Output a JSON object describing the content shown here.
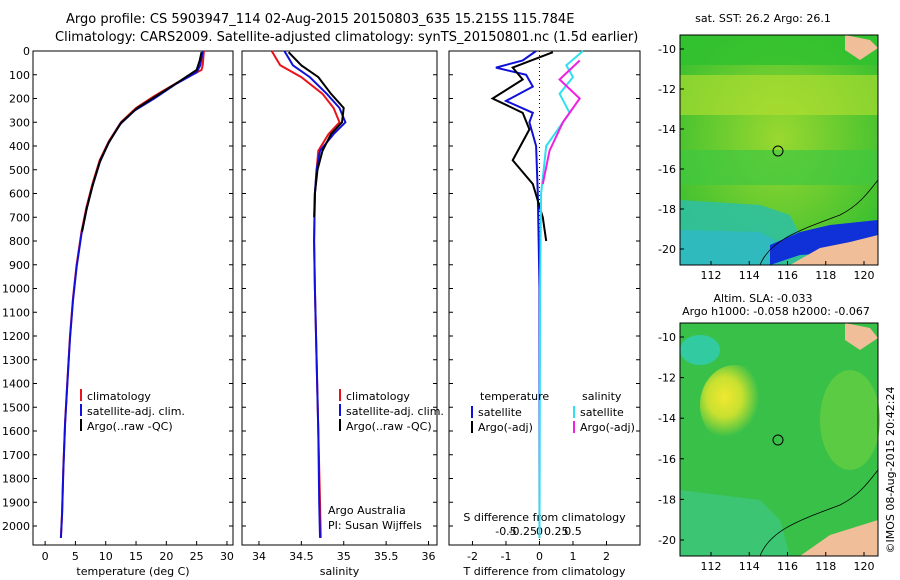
{
  "header": {
    "line1": "Argo profile: CS 5903947_114 02-Aug-2015 20150803_635 15.215S 115.784E",
    "line2": "Climatology: CARS2009. Satellite-adjusted climatology: synTS_20150801.nc (1.5d earlier)"
  },
  "colors": {
    "climatology": "#e8141b",
    "satellite": "#1010d8",
    "argo": "#000000",
    "sat_salinity": "#30e0f0",
    "argo_salinity": "#f020e0",
    "land": "#f0be98"
  },
  "depth_ticks": [
    "0",
    "100",
    "200",
    "300",
    "400",
    "500",
    "600",
    "700",
    "800",
    "900",
    "1000",
    "1100",
    "1200",
    "1300",
    "1400",
    "1500",
    "1600",
    "1700",
    "1800",
    "1900",
    "2000"
  ],
  "chart_data": [
    {
      "type": "line",
      "xlabel": "temperature (deg C)",
      "xlim": [
        -2,
        31
      ],
      "ylim": [
        2080,
        0
      ],
      "xticks": [
        "0",
        "5",
        "10",
        "15",
        "20",
        "25",
        "30"
      ],
      "legend": [
        "climatology",
        "satellite-adj. clim.",
        "Argo(..raw -QC)"
      ],
      "series": [
        {
          "name": "climatology",
          "color": "#e8141b",
          "points": [
            [
              26.2,
              0
            ],
            [
              26.0,
              60
            ],
            [
              25.8,
              80
            ],
            [
              22,
              130
            ],
            [
              18,
              190
            ],
            [
              15,
              240
            ],
            [
              12.5,
              300
            ],
            [
              10.5,
              380
            ],
            [
              9,
              460
            ],
            [
              7.8,
              560
            ],
            [
              6.8,
              660
            ],
            [
              6,
              760
            ],
            [
              5.2,
              900
            ],
            [
              4.6,
              1040
            ],
            [
              4.1,
              1200
            ],
            [
              3.7,
              1380
            ],
            [
              3.3,
              1560
            ],
            [
              3.0,
              1760
            ],
            [
              2.8,
              1940
            ],
            [
              2.6,
              2050
            ]
          ]
        },
        {
          "name": "satellite-adj. clim.",
          "color": "#1010d8",
          "points": [
            [
              26.0,
              0
            ],
            [
              25.6,
              60
            ],
            [
              25.0,
              90
            ],
            [
              21.5,
              140
            ],
            [
              18,
              200
            ],
            [
              14.8,
              250
            ],
            [
              12.3,
              310
            ],
            [
              10.4,
              390
            ],
            [
              9,
              470
            ],
            [
              7.8,
              570
            ],
            [
              6.8,
              670
            ],
            [
              6,
              770
            ],
            [
              5.2,
              910
            ],
            [
              4.6,
              1050
            ],
            [
              4.1,
              1210
            ],
            [
              3.7,
              1390
            ],
            [
              3.3,
              1570
            ],
            [
              3.0,
              1770
            ],
            [
              2.8,
              1950
            ],
            [
              2.6,
              2050
            ]
          ]
        },
        {
          "name": "Argo(..raw -QC)",
          "color": "#000000",
          "points": [
            [
              25.8,
              5
            ],
            [
              25.5,
              40
            ],
            [
              25.0,
              80
            ],
            [
              22,
              130
            ],
            [
              18.3,
              190
            ],
            [
              15.2,
              240
            ],
            [
              12.6,
              300
            ],
            [
              10.6,
              380
            ],
            [
              9.1,
              460
            ],
            [
              7.9,
              560
            ],
            [
              6.9,
              660
            ],
            [
              6.1,
              760
            ]
          ]
        }
      ]
    },
    {
      "type": "line",
      "xlabel": "salinity",
      "xlim": [
        33.8,
        36.1
      ],
      "ylim": [
        2080,
        0
      ],
      "xticks": [
        "34",
        "34.5",
        "35",
        "35.5",
        "36"
      ],
      "legend": [
        "climatology",
        "satellite-adj. clim.",
        "Argo(..raw -QC)"
      ],
      "annotation": [
        "Argo Australia",
        "PI: Susan Wijffels"
      ],
      "series": [
        {
          "name": "climatology",
          "color": "#e8141b",
          "points": [
            [
              34.15,
              0
            ],
            [
              34.25,
              60
            ],
            [
              34.5,
              110
            ],
            [
              34.75,
              180
            ],
            [
              34.88,
              240
            ],
            [
              34.95,
              300
            ],
            [
              34.82,
              350
            ],
            [
              34.7,
              420
            ],
            [
              34.68,
              500
            ],
            [
              34.66,
              600
            ],
            [
              34.65,
              800
            ],
            [
              34.66,
              1000
            ],
            [
              34.68,
              1300
            ],
            [
              34.7,
              1600
            ],
            [
              34.72,
              1900
            ],
            [
              34.73,
              2050
            ]
          ]
        },
        {
          "name": "satellite-adj. clim.",
          "color": "#1010d8",
          "points": [
            [
              34.3,
              0
            ],
            [
              34.4,
              60
            ],
            [
              34.6,
              110
            ],
            [
              34.8,
              180
            ],
            [
              34.95,
              240
            ],
            [
              35.02,
              300
            ],
            [
              34.88,
              350
            ],
            [
              34.72,
              420
            ],
            [
              34.68,
              500
            ],
            [
              34.66,
              600
            ],
            [
              34.65,
              800
            ],
            [
              34.66,
              1000
            ],
            [
              34.68,
              1300
            ],
            [
              34.7,
              1600
            ],
            [
              34.71,
              1900
            ],
            [
              34.72,
              2050
            ]
          ]
        },
        {
          "name": "Argo(..raw -QC)",
          "color": "#000000",
          "points": [
            [
              34.35,
              5
            ],
            [
              34.5,
              60
            ],
            [
              34.7,
              110
            ],
            [
              34.85,
              180
            ],
            [
              35.0,
              240
            ],
            [
              34.98,
              300
            ],
            [
              34.85,
              350
            ],
            [
              34.75,
              420
            ],
            [
              34.69,
              500
            ],
            [
              34.66,
              600
            ],
            [
              34.65,
              700
            ]
          ]
        }
      ]
    },
    {
      "type": "line",
      "xlabel": "T difference from climatology",
      "xlabel_top": "S difference from climatology",
      "xlim": [
        -2.7,
        3.0
      ],
      "ylim": [
        2080,
        0
      ],
      "xticks": [
        "-2",
        "-1",
        "0",
        "1",
        "2"
      ],
      "xticks_top": [
        "-0.5",
        "-0.25",
        "0",
        "0.25",
        "0.5"
      ],
      "legend_left": {
        "title": "temperature",
        "items": [
          "satellite",
          "Argo(-adj)"
        ]
      },
      "legend_right": {
        "title": "salinity",
        "items": [
          "satellite",
          "Argo(-adj)"
        ]
      },
      "series": [
        {
          "name": "satellite",
          "color": "#1010d8",
          "points": [
            [
              -0.1,
              0
            ],
            [
              -0.5,
              40
            ],
            [
              -1.3,
              70
            ],
            [
              -0.4,
              100
            ],
            [
              -0.2,
              150
            ],
            [
              -1.0,
              210
            ],
            [
              -0.2,
              260
            ],
            [
              -0.3,
              300
            ],
            [
              -0.1,
              400
            ],
            [
              -0.05,
              600
            ],
            [
              0,
              1000
            ],
            [
              0,
              2050
            ]
          ]
        },
        {
          "name": "Argo(-adj)",
          "color": "#000000",
          "points": [
            [
              0.4,
              5
            ],
            [
              -0.8,
              70
            ],
            [
              -0.5,
              120
            ],
            [
              -1.4,
              200
            ],
            [
              -0.5,
              260
            ],
            [
              -0.3,
              330
            ],
            [
              -0.8,
              460
            ],
            [
              -0.2,
              560
            ],
            [
              0.1,
              700
            ],
            [
              0.2,
              800
            ]
          ]
        },
        {
          "name": "satellite salinity",
          "color": "#30e0f0",
          "points": [
            [
              1.3,
              0
            ],
            [
              0.8,
              60
            ],
            [
              1.0,
              110
            ],
            [
              0.6,
              180
            ],
            [
              0.9,
              260
            ],
            [
              0.2,
              400
            ],
            [
              0.05,
              600
            ],
            [
              0.02,
              1000
            ],
            [
              0,
              2050
            ]
          ]
        },
        {
          "name": "Argo(-adj) salinity",
          "color": "#f020e0",
          "points": [
            [
              1.2,
              40
            ],
            [
              0.6,
              120
            ],
            [
              1.2,
              200
            ],
            [
              0.7,
              300
            ],
            [
              0.3,
              420
            ],
            [
              0.1,
              560
            ]
          ]
        }
      ]
    }
  ],
  "map_top": {
    "title": "sat. SST: 26.2  Argo: 26.1",
    "yticks": [
      "-10",
      "-12",
      "-14",
      "-16",
      "-18",
      "-20"
    ],
    "xticks": [
      "112",
      "114",
      "116",
      "118",
      "120"
    ]
  },
  "map_bottom": {
    "title1": "Altim. SLA: -0.033",
    "title2": "Argo h1000: -0.058  h2000: -0.067",
    "yticks": [
      "-10",
      "-12",
      "-14",
      "-16",
      "-18",
      "-20"
    ],
    "xticks": [
      "112",
      "114",
      "116",
      "118",
      "120"
    ]
  },
  "credit": "©IMOS 08-Aug-2015 20:42:24"
}
